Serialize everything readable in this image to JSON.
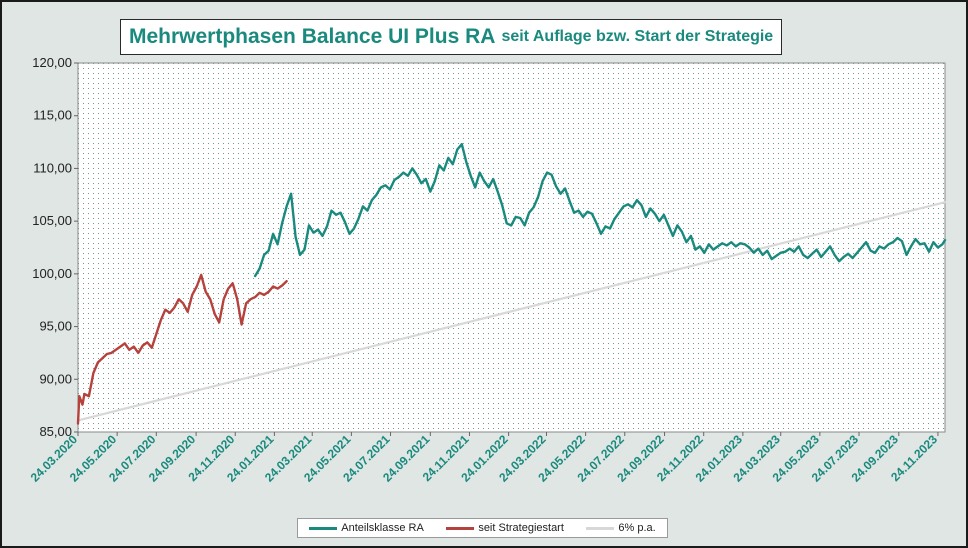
{
  "chart_data": {
    "type": "line",
    "title": "Mehrwertphasen Balance UI Plus RA",
    "subtitle": "seit Auflage bzw. Start der Strategie",
    "ylim": [
      85,
      120
    ],
    "yticks": [
      "85,00",
      "90,00",
      "95,00",
      "100,00",
      "105,00",
      "110,00",
      "115,00",
      "120,00"
    ],
    "xticks": [
      "24.03.2020",
      "24.05.2020",
      "24.07.2020",
      "24.09.2020",
      "24.11.2020",
      "24.01.2021",
      "24.03.2021",
      "24.05.2021",
      "24.07.2021",
      "24.09.2021",
      "24.11.2021",
      "24.01.2022",
      "24.03.2022",
      "24.05.2022",
      "24.07.2022",
      "24.09.2022",
      "24.11.2022",
      "24.01.2023",
      "24.03.2023",
      "24.05.2023",
      "24.07.2023",
      "24.09.2023",
      "24.11.2023"
    ],
    "xrange": [
      "2020-03-24",
      "2023-12-05"
    ],
    "grid": "dotted background",
    "legend_position": "bottom",
    "colors": {
      "teal": "#1a8a7e",
      "red": "#b5423c",
      "gray": "#d8d8d8"
    },
    "series": [
      {
        "name": "Anteilsklasse RA",
        "color": "#1a8a7e",
        "points": [
          [
            "2020-12-25",
            99.8
          ],
          [
            "2021-01-01",
            100.5
          ],
          [
            "2021-01-08",
            101.8
          ],
          [
            "2021-01-15",
            102.2
          ],
          [
            "2021-01-22",
            103.8
          ],
          [
            "2021-01-29",
            102.8
          ],
          [
            "2021-02-05",
            104.8
          ],
          [
            "2021-02-12",
            106.4
          ],
          [
            "2021-02-19",
            107.6
          ],
          [
            "2021-02-26",
            103.5
          ],
          [
            "2021-03-05",
            101.8
          ],
          [
            "2021-03-12",
            102.3
          ],
          [
            "2021-03-19",
            104.6
          ],
          [
            "2021-03-26",
            103.9
          ],
          [
            "2021-04-02",
            104.2
          ],
          [
            "2021-04-09",
            103.6
          ],
          [
            "2021-04-16",
            104.5
          ],
          [
            "2021-04-23",
            106.0
          ],
          [
            "2021-04-30",
            105.6
          ],
          [
            "2021-05-07",
            105.8
          ],
          [
            "2021-05-14",
            104.9
          ],
          [
            "2021-05-21",
            103.8
          ],
          [
            "2021-05-28",
            104.3
          ],
          [
            "2021-06-04",
            105.2
          ],
          [
            "2021-06-11",
            106.4
          ],
          [
            "2021-06-18",
            106.0
          ],
          [
            "2021-06-25",
            107.0
          ],
          [
            "2021-07-02",
            107.5
          ],
          [
            "2021-07-09",
            108.2
          ],
          [
            "2021-07-16",
            108.4
          ],
          [
            "2021-07-23",
            108.0
          ],
          [
            "2021-07-30",
            108.9
          ],
          [
            "2021-08-06",
            109.2
          ],
          [
            "2021-08-13",
            109.6
          ],
          [
            "2021-08-20",
            109.3
          ],
          [
            "2021-08-27",
            110.0
          ],
          [
            "2021-09-03",
            109.4
          ],
          [
            "2021-09-10",
            108.6
          ],
          [
            "2021-09-17",
            109.0
          ],
          [
            "2021-09-24",
            107.8
          ],
          [
            "2021-10-01",
            108.8
          ],
          [
            "2021-10-08",
            110.3
          ],
          [
            "2021-10-15",
            109.8
          ],
          [
            "2021-10-22",
            111.0
          ],
          [
            "2021-10-29",
            110.4
          ],
          [
            "2021-11-05",
            111.8
          ],
          [
            "2021-11-12",
            112.3
          ],
          [
            "2021-11-19",
            110.6
          ],
          [
            "2021-11-26",
            109.3
          ],
          [
            "2021-12-03",
            108.2
          ],
          [
            "2021-12-10",
            109.6
          ],
          [
            "2021-12-17",
            108.8
          ],
          [
            "2021-12-24",
            108.2
          ],
          [
            "2021-12-31",
            109.0
          ],
          [
            "2022-01-07",
            107.8
          ],
          [
            "2022-01-14",
            106.5
          ],
          [
            "2022-01-21",
            104.8
          ],
          [
            "2022-01-28",
            104.6
          ],
          [
            "2022-02-04",
            105.4
          ],
          [
            "2022-02-11",
            105.3
          ],
          [
            "2022-02-18",
            104.6
          ],
          [
            "2022-02-25",
            105.8
          ],
          [
            "2022-03-04",
            106.3
          ],
          [
            "2022-03-11",
            107.3
          ],
          [
            "2022-03-18",
            108.8
          ],
          [
            "2022-03-25",
            109.6
          ],
          [
            "2022-04-01",
            109.4
          ],
          [
            "2022-04-08",
            108.3
          ],
          [
            "2022-04-15",
            107.6
          ],
          [
            "2022-04-22",
            108.1
          ],
          [
            "2022-04-29",
            106.9
          ],
          [
            "2022-05-06",
            105.8
          ],
          [
            "2022-05-13",
            106.0
          ],
          [
            "2022-05-20",
            105.4
          ],
          [
            "2022-05-27",
            105.9
          ],
          [
            "2022-06-03",
            105.7
          ],
          [
            "2022-06-10",
            104.8
          ],
          [
            "2022-06-17",
            103.8
          ],
          [
            "2022-06-24",
            104.5
          ],
          [
            "2022-07-01",
            104.3
          ],
          [
            "2022-07-08",
            105.2
          ],
          [
            "2022-07-15",
            105.8
          ],
          [
            "2022-07-22",
            106.4
          ],
          [
            "2022-07-29",
            106.6
          ],
          [
            "2022-08-05",
            106.3
          ],
          [
            "2022-08-12",
            107.0
          ],
          [
            "2022-08-19",
            106.5
          ],
          [
            "2022-08-26",
            105.4
          ],
          [
            "2022-09-02",
            106.2
          ],
          [
            "2022-09-09",
            105.7
          ],
          [
            "2022-09-16",
            105.0
          ],
          [
            "2022-09-23",
            105.6
          ],
          [
            "2022-09-30",
            104.6
          ],
          [
            "2022-10-07",
            103.6
          ],
          [
            "2022-10-14",
            104.6
          ],
          [
            "2022-10-21",
            104.0
          ],
          [
            "2022-10-28",
            103.0
          ],
          [
            "2022-11-04",
            103.6
          ],
          [
            "2022-11-11",
            102.3
          ],
          [
            "2022-11-18",
            102.6
          ],
          [
            "2022-11-25",
            102.0
          ],
          [
            "2022-12-02",
            102.8
          ],
          [
            "2022-12-09",
            102.3
          ],
          [
            "2022-12-16",
            102.6
          ],
          [
            "2022-12-23",
            102.9
          ],
          [
            "2022-12-30",
            102.7
          ],
          [
            "2023-01-06",
            103.0
          ],
          [
            "2023-01-13",
            102.6
          ],
          [
            "2023-01-20",
            102.9
          ],
          [
            "2023-01-27",
            102.8
          ],
          [
            "2023-02-03",
            102.5
          ],
          [
            "2023-02-10",
            102.0
          ],
          [
            "2023-02-17",
            102.4
          ],
          [
            "2023-02-24",
            101.8
          ],
          [
            "2023-03-03",
            102.2
          ],
          [
            "2023-03-10",
            101.4
          ],
          [
            "2023-03-17",
            101.7
          ],
          [
            "2023-03-24",
            102.0
          ],
          [
            "2023-03-31",
            102.1
          ],
          [
            "2023-04-07",
            102.4
          ],
          [
            "2023-04-14",
            102.1
          ],
          [
            "2023-04-21",
            102.6
          ],
          [
            "2023-04-28",
            101.8
          ],
          [
            "2023-05-05",
            101.5
          ],
          [
            "2023-05-12",
            101.9
          ],
          [
            "2023-05-19",
            102.3
          ],
          [
            "2023-05-26",
            101.6
          ],
          [
            "2023-06-02",
            102.1
          ],
          [
            "2023-06-09",
            102.6
          ],
          [
            "2023-06-16",
            101.8
          ],
          [
            "2023-06-23",
            101.2
          ],
          [
            "2023-06-30",
            101.6
          ],
          [
            "2023-07-07",
            101.9
          ],
          [
            "2023-07-14",
            101.5
          ],
          [
            "2023-07-21",
            102.0
          ],
          [
            "2023-07-28",
            102.5
          ],
          [
            "2023-08-04",
            103.0
          ],
          [
            "2023-08-11",
            102.2
          ],
          [
            "2023-08-18",
            102.0
          ],
          [
            "2023-08-25",
            102.6
          ],
          [
            "2023-09-01",
            102.4
          ],
          [
            "2023-09-08",
            102.8
          ],
          [
            "2023-09-15",
            103.0
          ],
          [
            "2023-09-22",
            103.4
          ],
          [
            "2023-09-29",
            103.1
          ],
          [
            "2023-10-06",
            101.8
          ],
          [
            "2023-10-13",
            102.6
          ],
          [
            "2023-10-20",
            103.3
          ],
          [
            "2023-10-27",
            102.8
          ],
          [
            "2023-11-03",
            102.9
          ],
          [
            "2023-11-10",
            102.1
          ],
          [
            "2023-11-17",
            103.0
          ],
          [
            "2023-11-24",
            102.5
          ],
          [
            "2023-12-01",
            102.8
          ],
          [
            "2023-12-05",
            103.2
          ]
        ]
      },
      {
        "name": "seit Strategiestart",
        "color": "#b5423c",
        "points": [
          [
            "2020-03-24",
            85.8
          ],
          [
            "2020-03-26",
            88.4
          ],
          [
            "2020-03-31",
            87.6
          ],
          [
            "2020-04-03",
            88.6
          ],
          [
            "2020-04-10",
            88.4
          ],
          [
            "2020-04-17",
            90.6
          ],
          [
            "2020-04-24",
            91.6
          ],
          [
            "2020-05-01",
            92.0
          ],
          [
            "2020-05-08",
            92.4
          ],
          [
            "2020-05-15",
            92.5
          ],
          [
            "2020-05-22",
            92.8
          ],
          [
            "2020-05-29",
            93.1
          ],
          [
            "2020-06-05",
            93.4
          ],
          [
            "2020-06-12",
            92.8
          ],
          [
            "2020-06-19",
            93.1
          ],
          [
            "2020-06-26",
            92.5
          ],
          [
            "2020-07-03",
            93.2
          ],
          [
            "2020-07-10",
            93.5
          ],
          [
            "2020-07-17",
            93.0
          ],
          [
            "2020-07-24",
            94.3
          ],
          [
            "2020-07-31",
            95.6
          ],
          [
            "2020-08-07",
            96.6
          ],
          [
            "2020-08-14",
            96.3
          ],
          [
            "2020-08-21",
            96.8
          ],
          [
            "2020-08-28",
            97.6
          ],
          [
            "2020-09-04",
            97.2
          ],
          [
            "2020-09-11",
            96.4
          ],
          [
            "2020-09-18",
            98.0
          ],
          [
            "2020-09-25",
            98.8
          ],
          [
            "2020-10-02",
            99.9
          ],
          [
            "2020-10-09",
            98.3
          ],
          [
            "2020-10-16",
            97.6
          ],
          [
            "2020-10-23",
            96.2
          ],
          [
            "2020-10-30",
            95.4
          ],
          [
            "2020-11-06",
            97.6
          ],
          [
            "2020-11-13",
            98.6
          ],
          [
            "2020-11-20",
            99.1
          ],
          [
            "2020-11-27",
            97.6
          ],
          [
            "2020-12-04",
            95.2
          ],
          [
            "2020-12-11",
            97.2
          ],
          [
            "2020-12-18",
            97.6
          ],
          [
            "2020-12-25",
            97.8
          ],
          [
            "2021-01-01",
            98.2
          ],
          [
            "2021-01-08",
            98.0
          ],
          [
            "2021-01-15",
            98.3
          ],
          [
            "2021-01-22",
            98.8
          ],
          [
            "2021-01-29",
            98.6
          ],
          [
            "2021-02-05",
            98.9
          ],
          [
            "2021-02-12",
            99.3
          ]
        ]
      },
      {
        "name": "6% p.a.",
        "color": "#d8d8d8",
        "points": [
          [
            "2020-03-24",
            86.1
          ],
          [
            "2023-12-05",
            106.8
          ]
        ]
      }
    ]
  }
}
